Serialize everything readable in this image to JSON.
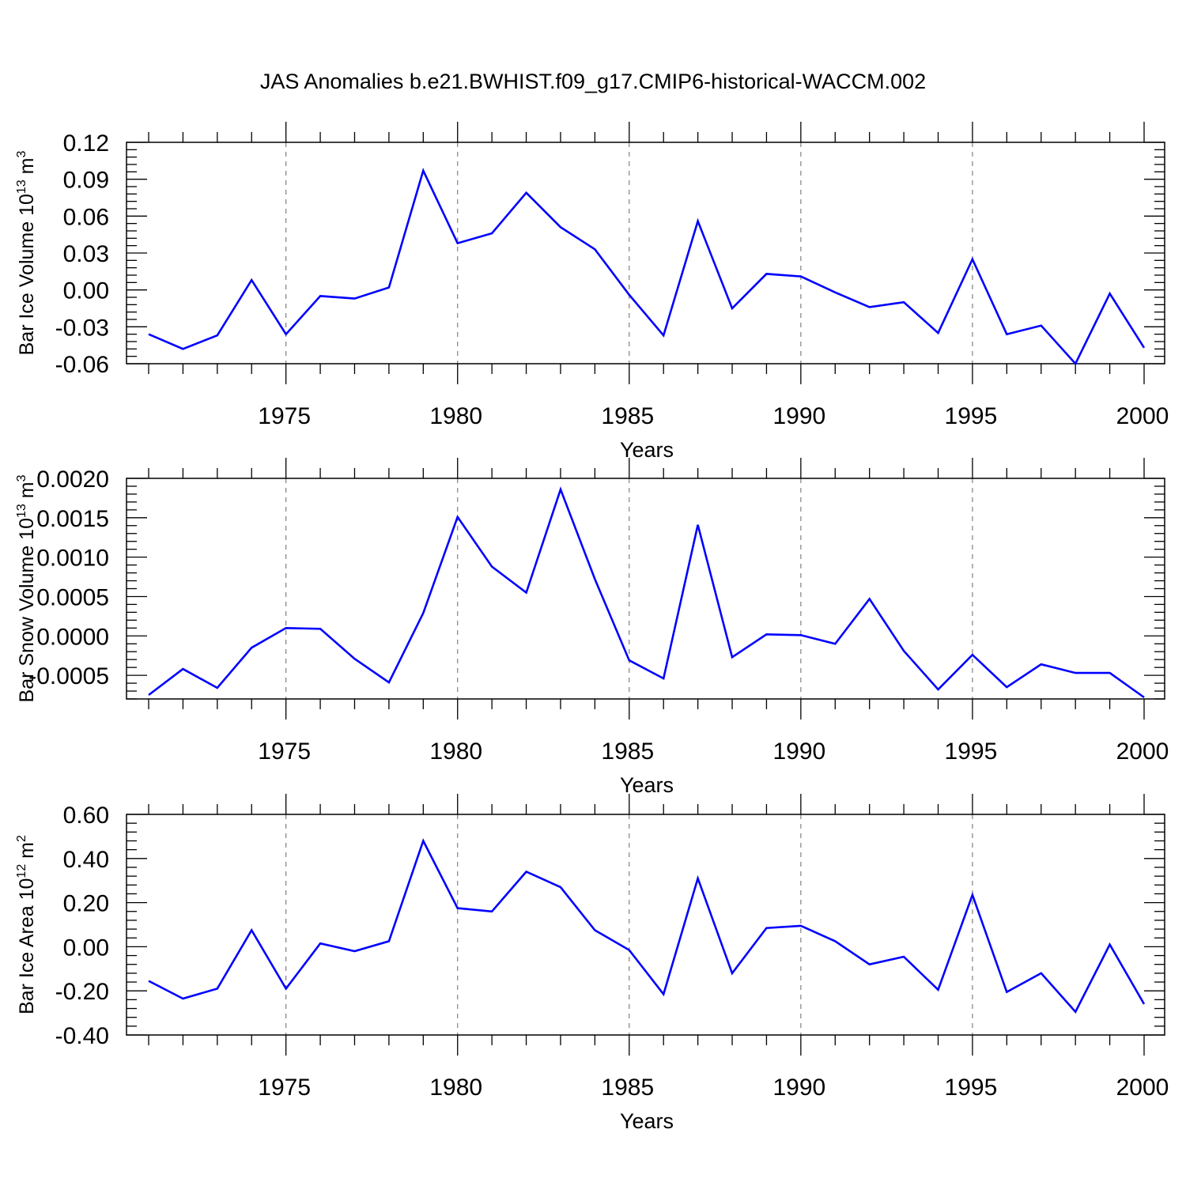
{
  "title": "JAS Anomalies b.e21.BWHIST.f09_g17.CMIP6-historical-WACCM.002",
  "colors": {
    "line": "#0000ff",
    "axis": "#000000",
    "grid": "#808080"
  },
  "chart_data": [
    {
      "type": "line",
      "ylabel": {
        "base": "Bar Ice Volume 10",
        "exp": "13",
        "unit": " m",
        "unit_exp": "3"
      },
      "xlabel": "Years",
      "xlim": [
        1971,
        2000
      ],
      "ylim": [
        -0.06,
        0.12
      ],
      "yticks": [
        -0.06,
        -0.03,
        0.0,
        0.03,
        0.06,
        0.09,
        0.12
      ],
      "ytick_labels": [
        "-0.06",
        "-0.03",
        "0.00",
        "0.03",
        "0.06",
        "0.09",
        "0.12"
      ],
      "xticks": [
        1975,
        1980,
        1985,
        1990,
        1995,
        2000
      ],
      "xtick_labels": [
        "1975",
        "1980",
        "1985",
        "1990",
        "1995",
        "2000"
      ],
      "grid": "vertical dashed at major x ticks",
      "series": [
        {
          "x": [
            1971,
            1972,
            1973,
            1974,
            1975,
            1976,
            1977,
            1978,
            1979,
            1980,
            1981,
            1982,
            1983,
            1984,
            1985,
            1986,
            1987,
            1988,
            1989,
            1990,
            1991,
            1992,
            1993,
            1994,
            1995,
            1996,
            1997,
            1998,
            1999,
            2000
          ],
          "values": [
            -0.036,
            -0.048,
            -0.037,
            0.008,
            -0.036,
            -0.005,
            -0.007,
            0.002,
            0.097,
            0.038,
            0.046,
            0.079,
            0.051,
            0.033,
            -0.004,
            -0.037,
            0.056,
            -0.015,
            0.013,
            0.011,
            -0.002,
            -0.014,
            -0.01,
            -0.035,
            0.025,
            -0.036,
            -0.029,
            -0.06,
            -0.003,
            -0.047
          ]
        }
      ]
    },
    {
      "type": "line",
      "ylabel": {
        "base": "Bar Snow Volume 10",
        "exp": "13",
        "unit": " m",
        "unit_exp": "3"
      },
      "xlabel": "Years",
      "xlim": [
        1971,
        2000
      ],
      "ylim": [
        -0.0008,
        0.002
      ],
      "yticks": [
        -0.0005,
        0.0,
        0.0005,
        0.001,
        0.0015,
        0.002
      ],
      "ytick_labels": [
        "-0.0005",
        "0.0000",
        "0.0005",
        "0.0010",
        "0.0015",
        "0.0020"
      ],
      "xticks": [
        1975,
        1980,
        1985,
        1990,
        1995,
        2000
      ],
      "xtick_labels": [
        "1975",
        "1980",
        "1985",
        "1990",
        "1995",
        "2000"
      ],
      "grid": "vertical dashed at major x ticks",
      "series": [
        {
          "x": [
            1971,
            1972,
            1973,
            1974,
            1975,
            1976,
            1977,
            1978,
            1979,
            1980,
            1981,
            1982,
            1983,
            1984,
            1985,
            1986,
            1987,
            1988,
            1989,
            1990,
            1991,
            1992,
            1993,
            1994,
            1995,
            1996,
            1997,
            1998,
            1999,
            2000
          ],
          "values": [
            -0.00075,
            -0.00042,
            -0.00066,
            -0.00015,
            0.0001,
            9e-05,
            -0.00029,
            -0.00059,
            0.00029,
            0.00151,
            0.00088,
            0.00055,
            0.00186,
            0.00072,
            -0.00031,
            -0.00054,
            0.00141,
            -0.00027,
            2e-05,
            1e-05,
            -0.0001,
            0.00047,
            -0.00019,
            -0.00068,
            -0.00024,
            -0.00065,
            -0.00036,
            -0.00047,
            -0.00047,
            -0.00078
          ]
        }
      ]
    },
    {
      "type": "line",
      "ylabel": {
        "base": "Bar Ice Area 10",
        "exp": "12",
        "unit": " m",
        "unit_exp": "2"
      },
      "xlabel": "Years",
      "xlim": [
        1971,
        2000
      ],
      "ylim": [
        -0.4,
        0.6
      ],
      "yticks": [
        -0.4,
        -0.2,
        0.0,
        0.2,
        0.4,
        0.6
      ],
      "ytick_labels": [
        "-0.40",
        "-0.20",
        "0.00",
        "0.20",
        "0.40",
        "0.60"
      ],
      "xticks": [
        1975,
        1980,
        1985,
        1990,
        1995,
        2000
      ],
      "xtick_labels": [
        "1975",
        "1980",
        "1985",
        "1990",
        "1995",
        "2000"
      ],
      "grid": "vertical dashed at major x ticks",
      "series": [
        {
          "x": [
            1971,
            1972,
            1973,
            1974,
            1975,
            1976,
            1977,
            1978,
            1979,
            1980,
            1981,
            1982,
            1983,
            1984,
            1985,
            1986,
            1987,
            1988,
            1989,
            1990,
            1991,
            1992,
            1993,
            1994,
            1995,
            1996,
            1997,
            1998,
            1999,
            2000
          ],
          "values": [
            -0.155,
            -0.235,
            -0.19,
            0.075,
            -0.19,
            0.015,
            -0.02,
            0.025,
            0.48,
            0.175,
            0.16,
            0.34,
            0.27,
            0.075,
            -0.015,
            -0.215,
            0.31,
            -0.12,
            0.085,
            0.095,
            0.025,
            -0.08,
            -0.045,
            -0.195,
            0.235,
            -0.205,
            -0.12,
            -0.295,
            0.01,
            -0.26
          ]
        }
      ]
    }
  ]
}
